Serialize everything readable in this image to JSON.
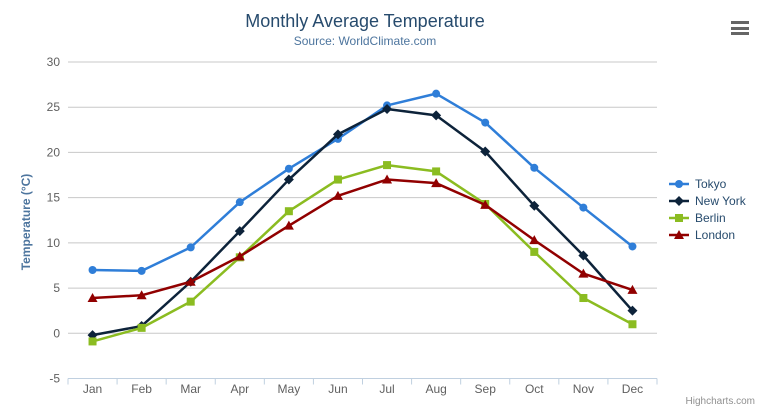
{
  "chart_data": {
    "type": "line",
    "title": "Monthly Average Temperature",
    "subtitle": "Source: WorldClimate.com",
    "xlabel": "",
    "ylabel": "Temperature (°C)",
    "ylim": [
      -5,
      30
    ],
    "y_tick_interval": 5,
    "y_tick_labels": [
      "-5",
      "0",
      "5",
      "10",
      "15",
      "20",
      "25",
      "30"
    ],
    "grid": true,
    "legend_position": "right",
    "categories": [
      "Jan",
      "Feb",
      "Mar",
      "Apr",
      "May",
      "Jun",
      "Jul",
      "Aug",
      "Sep",
      "Oct",
      "Nov",
      "Dec"
    ],
    "series": [
      {
        "name": "Tokyo",
        "color": "#2f7ed8",
        "marker": "circle",
        "values": [
          7.0,
          6.9,
          9.5,
          14.5,
          18.2,
          21.5,
          25.2,
          26.5,
          23.3,
          18.3,
          13.9,
          9.6
        ]
      },
      {
        "name": "New York",
        "color": "#0d233a",
        "marker": "diamond",
        "values": [
          -0.2,
          0.8,
          5.7,
          11.3,
          17.0,
          22.0,
          24.8,
          24.1,
          20.1,
          14.1,
          8.6,
          2.5
        ]
      },
      {
        "name": "Berlin",
        "color": "#8bbc21",
        "marker": "square",
        "values": [
          -0.9,
          0.6,
          3.5,
          8.4,
          13.5,
          17.0,
          18.6,
          17.9,
          14.3,
          9.0,
          3.9,
          1.0
        ]
      },
      {
        "name": "London",
        "color": "#910000",
        "marker": "triangle",
        "values": [
          3.9,
          4.2,
          5.7,
          8.5,
          11.9,
          15.2,
          17.0,
          16.6,
          14.2,
          10.3,
          6.6,
          4.8
        ]
      }
    ]
  },
  "credits": "Highcharts.com",
  "context_menu_icon": "hamburger-menu-icon",
  "colors": {
    "background": "#ffffff",
    "title": "#274b6d",
    "subtitle": "#4d759e",
    "axis_title": "#4d759e",
    "axis_labels": "#606060",
    "gridline": "#c8c8c8",
    "axis_line": "#c0d0e0",
    "legend_text": "#274b6d",
    "credits_text": "#909090",
    "menu_icon": "#666666"
  }
}
